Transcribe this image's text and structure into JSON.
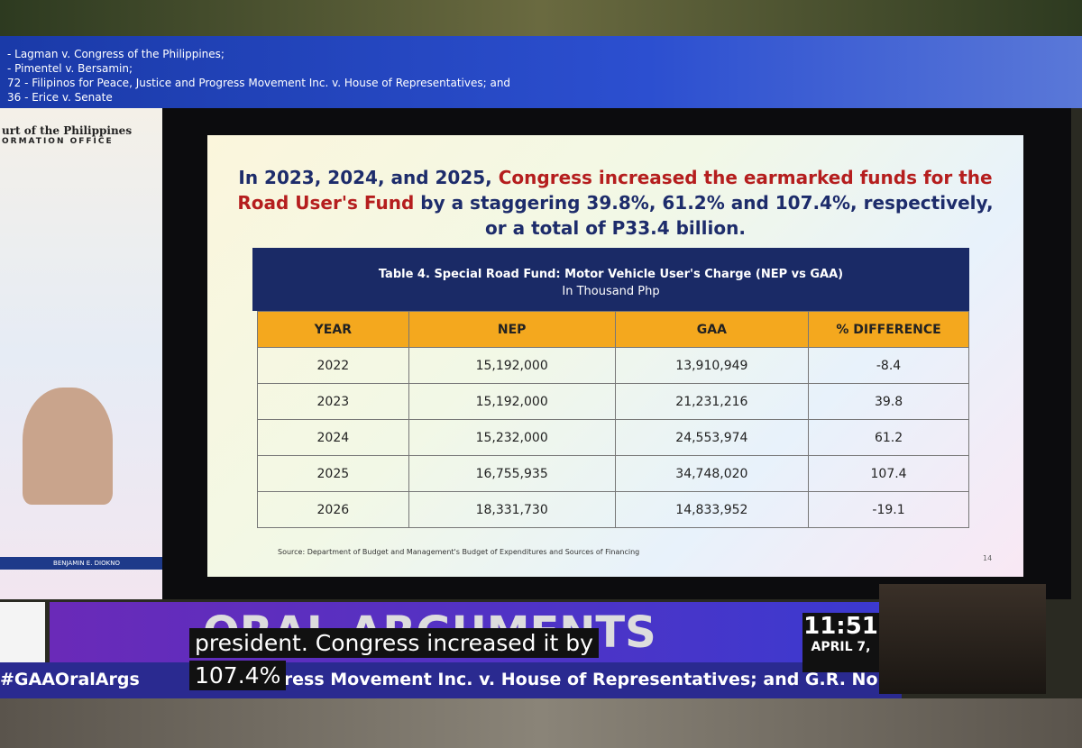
{
  "case_list": [
    "- Lagman v. Congress of the Philippines;",
    "- Pimentel v. Bersamin;",
    "72 - Filipinos for Peace, Justice and Progress Movement Inc. v. House of Representatives; and",
    "36 - Erice v. Senate"
  ],
  "logo": {
    "line1": "urt of the Philippines",
    "line2": "ORMATION OFFICE"
  },
  "slide": {
    "headline": {
      "part1": "In 2023, 2024, and 2025, ",
      "part2": "Congress increased the earmarked funds for the Road User's Fund",
      "part3": " by a staggering 39.8%, 61.2% and 107.4%, respectively, or a total of P33.4 billion."
    },
    "table": {
      "title": "Table 4. Special Road Fund: Motor Vehicle User's Charge (NEP vs GAA)",
      "subtitle": "In Thousand Php",
      "header": [
        "YEAR",
        "NEP",
        "GAA",
        "% DIFFERENCE"
      ],
      "rows": [
        [
          "2022",
          "15,192,000",
          "13,910,949",
          "-8.4"
        ],
        [
          "2023",
          "15,192,000",
          "21,231,216",
          "39.8"
        ],
        [
          "2024",
          "15,232,000",
          "24,553,974",
          "61.2"
        ],
        [
          "2025",
          "16,755,935",
          "34,748,020",
          "107.4"
        ],
        [
          "2026",
          "18,331,730",
          "14,833,952",
          "-19.1"
        ]
      ]
    },
    "source": "Source: Department of Budget and Management's Budget of Expenditures and Sources of Financing",
    "page": "14"
  },
  "speaker": "BENJAMIN E. DIOKNO",
  "banner": "ORAL ARGUMENTS",
  "clock": {
    "time": "11:51",
    "date": "APRIL 7,"
  },
  "caption": [
    "president. Congress increased it by",
    "107.4%"
  ],
  "ticker": {
    "tag": "#GAAOralArgs",
    "text": "ress Movement Inc. v. House of Representatives; and G.R. No"
  }
}
